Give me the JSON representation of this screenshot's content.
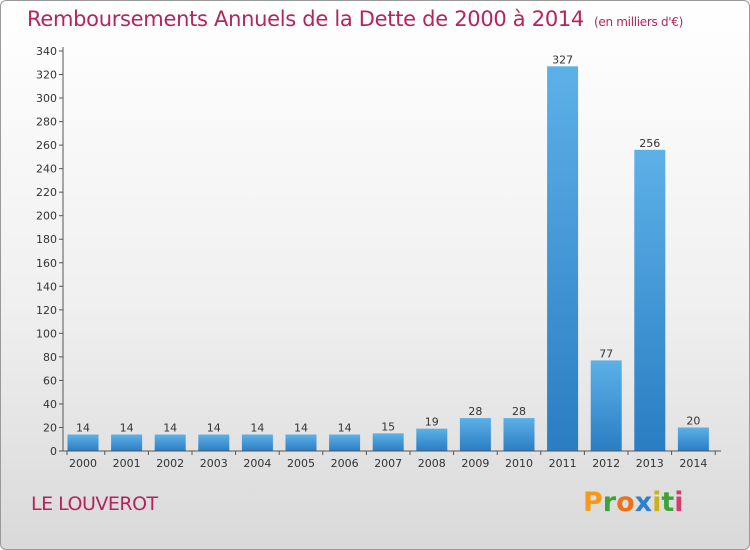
{
  "header": {
    "title": "Remboursements Annuels de la Dette de 2000 à 2014",
    "unit": "(en milliers d'€)"
  },
  "footer": {
    "commune": "LE LOUVEROT",
    "logo_text": "Proxiti"
  },
  "colors": {
    "title": "#b5245e",
    "bar_light": "#5db1e8",
    "bar_dark": "#2a7dc2"
  },
  "chart_data": {
    "type": "bar",
    "title": "Remboursements Annuels de la Dette de 2000 à 2014",
    "xlabel": "",
    "ylabel": "",
    "categories": [
      "2000",
      "2001",
      "2002",
      "2003",
      "2004",
      "2005",
      "2006",
      "2007",
      "2008",
      "2009",
      "2010",
      "2011",
      "2012",
      "2013",
      "2014"
    ],
    "values": [
      14,
      14,
      14,
      14,
      14,
      14,
      14,
      15,
      19,
      28,
      28,
      327,
      77,
      256,
      20
    ],
    "data_labels": [
      "14",
      "14",
      "14",
      "14",
      "14",
      "14",
      "14",
      "15",
      "19",
      "28",
      "28",
      "327",
      "77",
      "256",
      "20"
    ],
    "ylim": [
      0,
      340
    ],
    "yticks": [
      0,
      20,
      40,
      60,
      80,
      100,
      120,
      140,
      160,
      180,
      200,
      220,
      240,
      260,
      280,
      300,
      320,
      340
    ],
    "grid": false,
    "legend": "none"
  }
}
